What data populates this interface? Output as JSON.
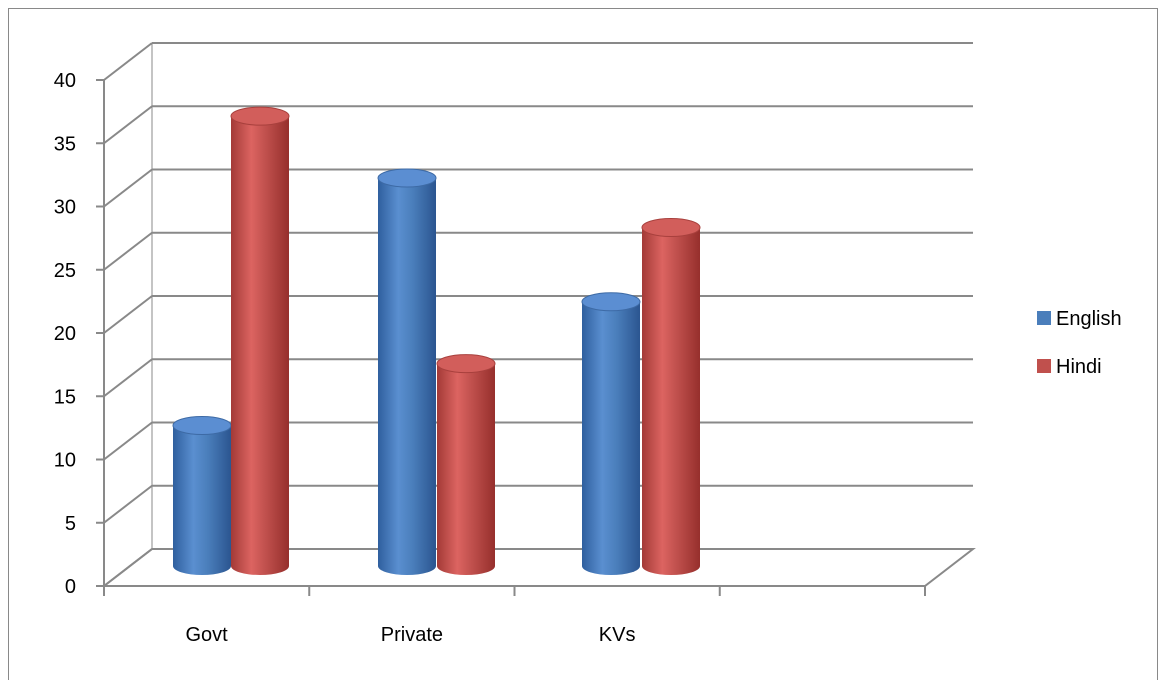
{
  "chart_data": {
    "type": "bar",
    "style": "3d-cylinder",
    "categories": [
      "Govt",
      "Private",
      "KVs"
    ],
    "series": [
      {
        "name": "English",
        "values": [
          12,
          32,
          22
        ],
        "color": "#4a7ebb"
      },
      {
        "name": "Hindi",
        "values": [
          37,
          17,
          28
        ],
        "color": "#c0504d"
      }
    ],
    "title": "",
    "xlabel": "",
    "ylabel": "",
    "ylim": [
      0,
      40
    ],
    "yticks": [
      "0",
      "5",
      "10",
      "15",
      "20",
      "25",
      "30",
      "35",
      "40"
    ],
    "grid": true,
    "legend_position": "right"
  }
}
